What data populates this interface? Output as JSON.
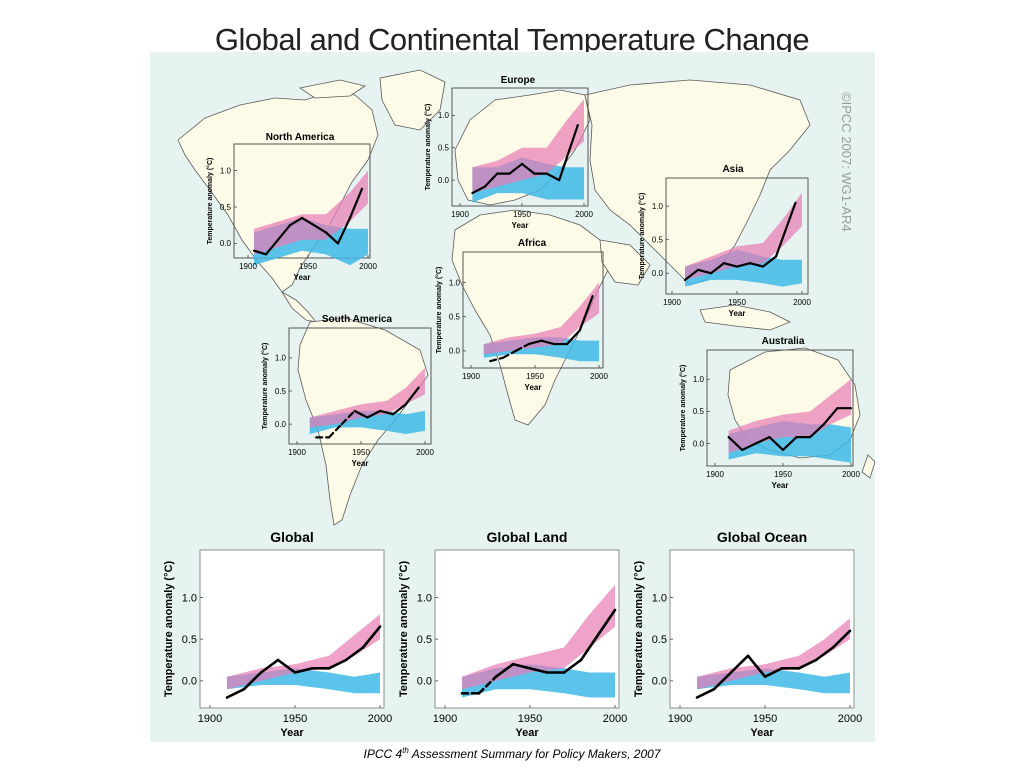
{
  "slide": {
    "title": "Global and Continental Temperature Change",
    "caption_prefix": "IPCC 4",
    "caption_sup": "th",
    "caption_suffix": " Assessment Summary for Policy Makers, 2007",
    "watermark": "©IPCC  2007:  WG1-AR4"
  },
  "colors": {
    "ocean_bg": "#e6f3f1",
    "land": "#fdfbe7",
    "land_outline": "#5b5b5b",
    "obs_line": "#000000",
    "natural_band": "#3fb8e8",
    "natural_plus_anthro_band": "#e87bb4",
    "overlap": "#8a6cc0"
  },
  "chart_data": [
    {
      "id": "north-america",
      "type": "line",
      "title": "North America",
      "xlabel": "Year",
      "ylabel": "Temperature anomaly (°C)",
      "xlim": [
        1900,
        2000
      ],
      "ylim": [
        -0.2,
        1.2
      ],
      "xticks": [
        "1900",
        "1950",
        "2000"
      ],
      "yticks": [
        "0.0",
        "0.5",
        "1.0"
      ],
      "observed": {
        "x": [
          1905,
          1915,
          1925,
          1935,
          1945,
          1955,
          1965,
          1975,
          1985,
          1995
        ],
        "y": [
          -0.1,
          -0.15,
          0.05,
          0.25,
          0.35,
          0.25,
          0.15,
          0.0,
          0.35,
          0.75
        ],
        "dashed_segments": []
      },
      "natural_band": {
        "x": [
          1905,
          1925,
          1945,
          1965,
          1985,
          2000
        ],
        "lower": [
          -0.3,
          -0.2,
          -0.1,
          -0.15,
          -0.3,
          -0.15
        ],
        "upper": [
          0.15,
          0.25,
          0.35,
          0.25,
          0.2,
          0.2
        ]
      },
      "combined_band": {
        "x": [
          1905,
          1925,
          1945,
          1965,
          1985,
          2000
        ],
        "lower": [
          -0.15,
          -0.05,
          0.05,
          0.05,
          0.3,
          0.55
        ],
        "upper": [
          0.2,
          0.3,
          0.4,
          0.4,
          0.7,
          1.0
        ]
      }
    },
    {
      "id": "europe",
      "type": "line",
      "title": "Europe",
      "xlabel": "Year",
      "ylabel": "Temperature anomaly (°C)",
      "xlim": [
        1900,
        2000
      ],
      "ylim": [
        -0.4,
        1.3
      ],
      "xticks": [
        "1900",
        "1950",
        "2000"
      ],
      "yticks": [
        "0.0",
        "0.5",
        "1.0"
      ],
      "observed": {
        "x": [
          1910,
          1920,
          1930,
          1940,
          1950,
          1960,
          1970,
          1980,
          1995
        ],
        "y": [
          -0.2,
          -0.1,
          0.1,
          0.1,
          0.25,
          0.1,
          0.1,
          0.0,
          0.85
        ],
        "dashed_segments": []
      },
      "natural_band": {
        "x": [
          1910,
          1930,
          1950,
          1970,
          1985,
          2000
        ],
        "lower": [
          -0.35,
          -0.2,
          -0.2,
          -0.3,
          -0.3,
          -0.3
        ],
        "upper": [
          0.2,
          0.2,
          0.35,
          0.25,
          0.2,
          0.2
        ]
      },
      "combined_band": {
        "x": [
          1910,
          1930,
          1950,
          1970,
          1985,
          2000
        ],
        "lower": [
          -0.2,
          -0.1,
          0.0,
          0.1,
          0.35,
          0.6
        ],
        "upper": [
          0.2,
          0.3,
          0.5,
          0.5,
          0.9,
          1.25
        ]
      }
    },
    {
      "id": "asia",
      "type": "line",
      "title": "Asia",
      "xlabel": "Year",
      "ylabel": "Temperature anomaly (°C)",
      "xlim": [
        1900,
        2000
      ],
      "ylim": [
        -0.25,
        1.3
      ],
      "xticks": [
        "1900",
        "1950",
        "2000"
      ],
      "yticks": [
        "0.0",
        "0.5",
        "1.0"
      ],
      "observed": {
        "x": [
          1910,
          1920,
          1930,
          1940,
          1950,
          1960,
          1970,
          1980,
          1995
        ],
        "y": [
          -0.1,
          0.05,
          0.0,
          0.15,
          0.1,
          0.15,
          0.1,
          0.25,
          1.05
        ],
        "dashed_segments": []
      },
      "natural_band": {
        "x": [
          1910,
          1930,
          1950,
          1970,
          1985,
          2000
        ],
        "lower": [
          -0.2,
          -0.1,
          -0.1,
          -0.15,
          -0.2,
          -0.15
        ],
        "upper": [
          0.1,
          0.2,
          0.35,
          0.25,
          0.2,
          0.2
        ]
      },
      "combined_band": {
        "x": [
          1910,
          1930,
          1950,
          1970,
          1985,
          2000
        ],
        "lower": [
          -0.1,
          0.0,
          0.1,
          0.15,
          0.4,
          0.7
        ],
        "upper": [
          0.1,
          0.25,
          0.4,
          0.45,
          0.8,
          1.2
        ]
      }
    },
    {
      "id": "africa",
      "type": "line",
      "title": "Africa",
      "xlabel": "Year",
      "ylabel": "Temperature anomaly (°C)",
      "xlim": [
        1900,
        2000
      ],
      "ylim": [
        -0.25,
        1.3
      ],
      "xticks": [
        "1900",
        "1950",
        "2000"
      ],
      "yticks": [
        "0.0",
        "0.5",
        "1.0"
      ],
      "observed": {
        "x": [
          1915,
          1925,
          1935,
          1945,
          1955,
          1965,
          1975,
          1985,
          1995
        ],
        "y": [
          -0.15,
          -0.1,
          0.0,
          0.1,
          0.15,
          0.1,
          0.1,
          0.3,
          0.8
        ],
        "dashed_segments": [
          [
            0,
            3
          ]
        ]
      },
      "natural_band": {
        "x": [
          1910,
          1930,
          1950,
          1970,
          1985,
          2000
        ],
        "lower": [
          -0.1,
          -0.05,
          -0.05,
          -0.1,
          -0.15,
          -0.15
        ],
        "upper": [
          0.1,
          0.15,
          0.2,
          0.2,
          0.15,
          0.15
        ]
      },
      "combined_band": {
        "x": [
          1910,
          1930,
          1950,
          1970,
          1985,
          2000
        ],
        "lower": [
          -0.05,
          0.0,
          0.05,
          0.1,
          0.35,
          0.55
        ],
        "upper": [
          0.1,
          0.2,
          0.25,
          0.35,
          0.65,
          1.0
        ]
      }
    },
    {
      "id": "south-america",
      "type": "line",
      "title": "South America",
      "xlabel": "Year",
      "ylabel": "Temperature anomaly (°C)",
      "xlim": [
        1900,
        2000
      ],
      "ylim": [
        -0.3,
        1.3
      ],
      "xticks": [
        "1900",
        "1950",
        "2000"
      ],
      "yticks": [
        "0.0",
        "0.5",
        "1.0"
      ],
      "observed": {
        "x": [
          1915,
          1925,
          1935,
          1945,
          1955,
          1965,
          1975,
          1985,
          1995
        ],
        "y": [
          -0.2,
          -0.2,
          0.0,
          0.2,
          0.1,
          0.2,
          0.15,
          0.3,
          0.55
        ],
        "dashed_segments": [
          [
            0,
            3
          ]
        ]
      },
      "natural_band": {
        "x": [
          1910,
          1930,
          1950,
          1970,
          1985,
          2000
        ],
        "lower": [
          -0.15,
          -0.05,
          -0.05,
          -0.1,
          -0.15,
          -0.1
        ],
        "upper": [
          0.1,
          0.15,
          0.2,
          0.2,
          0.15,
          0.2
        ]
      },
      "combined_band": {
        "x": [
          1910,
          1930,
          1950,
          1970,
          1985,
          2000
        ],
        "lower": [
          -0.05,
          0.0,
          0.1,
          0.15,
          0.3,
          0.45
        ],
        "upper": [
          0.1,
          0.2,
          0.3,
          0.35,
          0.55,
          0.85
        ]
      }
    },
    {
      "id": "australia",
      "type": "line",
      "title": "Australia",
      "xlabel": "Year",
      "ylabel": "Temperature anomaly (°C)",
      "xlim": [
        1900,
        2000
      ],
      "ylim": [
        -0.35,
        1.3
      ],
      "xticks": [
        "1900",
        "1950",
        "2000"
      ],
      "yticks": [
        "0.0",
        "0.5",
        "1.0"
      ],
      "observed": {
        "x": [
          1910,
          1920,
          1930,
          1940,
          1950,
          1960,
          1970,
          1980,
          1990,
          2000
        ],
        "y": [
          0.1,
          -0.1,
          0.0,
          0.1,
          -0.1,
          0.1,
          0.1,
          0.3,
          0.55,
          0.55
        ],
        "dashed_segments": []
      },
      "natural_band": {
        "x": [
          1910,
          1930,
          1950,
          1970,
          1985,
          2000
        ],
        "lower": [
          -0.25,
          -0.15,
          -0.2,
          -0.2,
          -0.25,
          -0.3
        ],
        "upper": [
          0.15,
          0.25,
          0.35,
          0.3,
          0.3,
          0.25
        ]
      },
      "combined_band": {
        "x": [
          1910,
          1930,
          1950,
          1970,
          1985,
          2000
        ],
        "lower": [
          -0.15,
          0.0,
          0.1,
          0.1,
          0.3,
          0.45
        ],
        "upper": [
          0.2,
          0.35,
          0.45,
          0.5,
          0.75,
          1.0
        ]
      }
    },
    {
      "id": "global",
      "type": "line",
      "title": "Global",
      "xlabel": "Year",
      "ylabel": "Temperature anomaly (°C)",
      "xlim": [
        1900,
        2000
      ],
      "ylim": [
        -0.35,
        1.45
      ],
      "xticks": [
        "1900",
        "1950",
        "2000"
      ],
      "yticks": [
        "0.0",
        "0.5",
        "1.0"
      ],
      "observed": {
        "x": [
          1910,
          1920,
          1930,
          1940,
          1950,
          1960,
          1970,
          1980,
          1990,
          2000
        ],
        "y": [
          -0.2,
          -0.1,
          0.1,
          0.25,
          0.1,
          0.15,
          0.15,
          0.25,
          0.4,
          0.65
        ],
        "dashed_segments": []
      },
      "natural_band": {
        "x": [
          1910,
          1930,
          1950,
          1970,
          1985,
          2000
        ],
        "lower": [
          -0.1,
          -0.05,
          -0.05,
          -0.1,
          -0.15,
          -0.15
        ],
        "upper": [
          0.05,
          0.1,
          0.15,
          0.1,
          0.05,
          0.1
        ]
      },
      "combined_band": {
        "x": [
          1910,
          1930,
          1950,
          1970,
          1985,
          2000
        ],
        "lower": [
          -0.1,
          0.0,
          0.1,
          0.15,
          0.3,
          0.5
        ],
        "upper": [
          0.05,
          0.15,
          0.2,
          0.3,
          0.55,
          0.8
        ]
      }
    },
    {
      "id": "global-land",
      "type": "line",
      "title": "Global Land",
      "xlabel": "Year",
      "ylabel": "Temperature anomaly (°C)",
      "xlim": [
        1900,
        2000
      ],
      "ylim": [
        -0.35,
        1.45
      ],
      "xticks": [
        "1900",
        "1950",
        "2000"
      ],
      "yticks": [
        "0.0",
        "0.5",
        "1.0"
      ],
      "observed": {
        "x": [
          1910,
          1920,
          1930,
          1940,
          1950,
          1960,
          1970,
          1980,
          1990,
          2000
        ],
        "y": [
          -0.15,
          -0.15,
          0.05,
          0.2,
          0.15,
          0.1,
          0.1,
          0.25,
          0.55,
          0.85
        ],
        "dashed_segments": [
          [
            0,
            2
          ]
        ]
      },
      "natural_band": {
        "x": [
          1910,
          1930,
          1950,
          1970,
          1985,
          2000
        ],
        "lower": [
          -0.2,
          -0.1,
          -0.1,
          -0.15,
          -0.2,
          -0.2
        ],
        "upper": [
          0.05,
          0.15,
          0.2,
          0.15,
          0.1,
          0.1
        ]
      },
      "combined_band": {
        "x": [
          1910,
          1930,
          1950,
          1970,
          1985,
          2000
        ],
        "lower": [
          -0.1,
          0.0,
          0.1,
          0.15,
          0.4,
          0.65
        ],
        "upper": [
          0.05,
          0.2,
          0.3,
          0.4,
          0.8,
          1.15
        ]
      }
    },
    {
      "id": "global-ocean",
      "type": "line",
      "title": "Global Ocean",
      "xlabel": "Year",
      "ylabel": "Temperature anomaly (°C)",
      "xlim": [
        1900,
        2000
      ],
      "ylim": [
        -0.35,
        1.45
      ],
      "xticks": [
        "1900",
        "1950",
        "2000"
      ],
      "yticks": [
        "0.0",
        "0.5",
        "1.0"
      ],
      "observed": {
        "x": [
          1910,
          1920,
          1930,
          1940,
          1950,
          1960,
          1970,
          1980,
          1990,
          2000
        ],
        "y": [
          -0.2,
          -0.1,
          0.1,
          0.3,
          0.05,
          0.15,
          0.15,
          0.25,
          0.4,
          0.6
        ],
        "dashed_segments": []
      },
      "natural_band": {
        "x": [
          1910,
          1930,
          1950,
          1970,
          1985,
          2000
        ],
        "lower": [
          -0.1,
          -0.05,
          -0.05,
          -0.1,
          -0.15,
          -0.15
        ],
        "upper": [
          0.05,
          0.1,
          0.15,
          0.1,
          0.05,
          0.1
        ]
      },
      "combined_band": {
        "x": [
          1910,
          1930,
          1950,
          1970,
          1985,
          2000
        ],
        "lower": [
          -0.1,
          0.0,
          0.1,
          0.15,
          0.3,
          0.5
        ],
        "upper": [
          0.05,
          0.15,
          0.2,
          0.3,
          0.5,
          0.75
        ]
      }
    }
  ]
}
